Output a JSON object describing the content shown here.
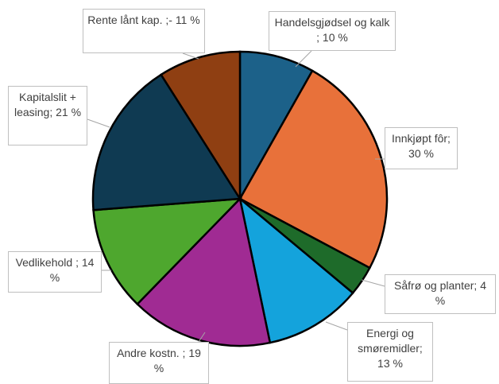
{
  "chart_data": {
    "type": "pie",
    "categories": [
      "Handelsgjødsel og kalk ;",
      "Innkjøpt fôr;",
      "Såfrø og planter;",
      "Energi og smøremidler;",
      "Andre kostn. ;",
      "Vedlikehold ;",
      "Kapitalslit + leasing;",
      "Rente lånt kap. ;-"
    ],
    "values": [
      10,
      30,
      4,
      13,
      19,
      14,
      21,
      11
    ],
    "value_labels": [
      "10 %",
      "30 %",
      "4 %",
      "13 %",
      "19 %",
      "14 %",
      "21 %",
      "11 %"
    ],
    "colors": [
      "#1c6189",
      "#e8713a",
      "#1e6b2a",
      "#14a3dc",
      "#a02b93",
      "#4ea72e",
      "#0f3a52",
      "#8f3f12"
    ]
  }
}
